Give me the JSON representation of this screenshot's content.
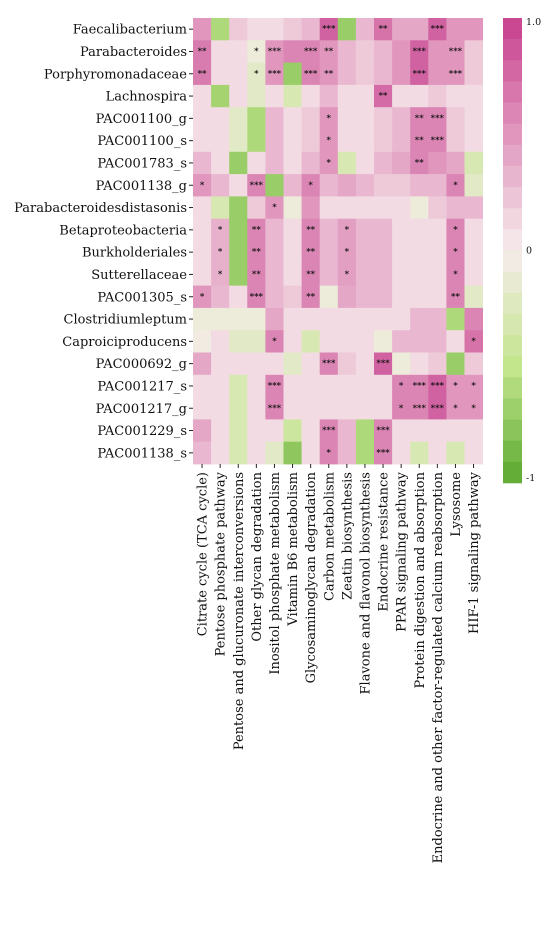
{
  "chart_data": {
    "type": "heatmap",
    "title": "",
    "xlabel": "",
    "ylabel": "",
    "rows": [
      "Faecalibacterium",
      "Parabacteroides",
      "Porphyromonadaceae",
      "Lachnospira",
      "PAC001100_g",
      "PAC001100_s",
      "PAC001783_s",
      "PAC001138_g",
      "Parabacteroidesdistasonis",
      "Betaproteobacteria",
      "Burkholderiales",
      "Sutterellaceae",
      "PAC001305_s",
      "Clostridiumleptum",
      "Caproiciproducens",
      "PAC000692_g",
      "PAC001217_s",
      "PAC001217_g",
      "PAC001229_s",
      "PAC001138_s"
    ],
    "columns": [
      "Citrate cycle (TCA cycle)",
      "Pentose phosphate pathway",
      "Pentose and glucuronate interconversions",
      "Other glycan degradation",
      "Inositol phosphate metabolism",
      "Vitamin B6 metabolism",
      "Glycosaminoglycan degradation",
      "Carbon metabolism",
      "Zeatin biosynthesis",
      "Flavone and flavonol biosynthesis",
      "Endocrine resistance",
      "PPAR signaling pathway",
      "Protein digestion and absorption",
      "Endocrine and other factor-regulated calcium reabsorption",
      "Lysosome",
      "HIF-1 signaling pathway"
    ],
    "values": [
      [
        0.5,
        -0.6,
        0.2,
        0.1,
        0.1,
        0.2,
        0.3,
        0.8,
        -0.7,
        0.3,
        0.7,
        0.4,
        0.4,
        0.8,
        0.5,
        0.5
      ],
      [
        0.65,
        0.1,
        0.1,
        -0.1,
        0.5,
        0.6,
        0.6,
        0.5,
        0.3,
        0.2,
        0.3,
        0.5,
        0.8,
        0.5,
        0.5,
        0.2
      ],
      [
        0.65,
        0.1,
        0.1,
        -0.2,
        0.5,
        -0.7,
        0.6,
        0.5,
        0.3,
        0.2,
        0.3,
        0.5,
        0.8,
        0.5,
        0.5,
        0.2
      ],
      [
        0.1,
        -0.65,
        0.1,
        -0.2,
        0.1,
        -0.3,
        0.1,
        0.3,
        0.1,
        0.1,
        0.75,
        0.1,
        0.1,
        0.2,
        0.1,
        0.1
      ],
      [
        0.1,
        0.1,
        -0.2,
        -0.6,
        0.3,
        0.1,
        0.2,
        0.5,
        0.1,
        0.1,
        0.2,
        0.3,
        0.6,
        0.6,
        0.2,
        0.1
      ],
      [
        0.1,
        0.1,
        -0.2,
        -0.6,
        0.3,
        0.1,
        0.2,
        0.5,
        0.1,
        0.1,
        0.2,
        0.3,
        0.6,
        0.6,
        0.2,
        0.1
      ],
      [
        0.3,
        0.1,
        -0.7,
        0.1,
        0.3,
        0.1,
        0.3,
        0.5,
        -0.3,
        0.1,
        0.3,
        0.4,
        0.6,
        0.5,
        0.4,
        -0.3
      ],
      [
        0.5,
        0.3,
        0.1,
        0.6,
        -0.7,
        0.3,
        0.6,
        0.3,
        0.4,
        0.3,
        0.2,
        0.2,
        0.3,
        0.3,
        0.6,
        -0.2
      ],
      [
        0.1,
        -0.3,
        -0.7,
        0.2,
        0.5,
        -0.1,
        0.5,
        0.1,
        0.1,
        0.1,
        0.1,
        0.1,
        -0.1,
        0.2,
        0.3,
        0.3
      ],
      [
        0.1,
        0.35,
        -0.7,
        0.6,
        0.3,
        0.1,
        0.6,
        0.3,
        0.45,
        0.3,
        0.3,
        0.1,
        0.1,
        0.1,
        0.6,
        0.1
      ],
      [
        0.1,
        0.35,
        -0.7,
        0.6,
        0.3,
        0.1,
        0.6,
        0.3,
        0.45,
        0.3,
        0.3,
        0.1,
        0.1,
        0.1,
        0.6,
        0.1
      ],
      [
        0.1,
        0.35,
        -0.7,
        0.6,
        0.3,
        0.1,
        0.6,
        0.3,
        0.45,
        0.3,
        0.3,
        0.1,
        0.1,
        0.1,
        0.6,
        0.1
      ],
      [
        0.5,
        0.3,
        0.1,
        0.6,
        0.3,
        0.2,
        0.6,
        -0.1,
        0.4,
        0.3,
        0.3,
        0.1,
        0.1,
        0.1,
        0.6,
        -0.2
      ],
      [
        -0.1,
        -0.1,
        -0.1,
        -0.1,
        0.4,
        0.1,
        0.1,
        0.1,
        0.1,
        0.1,
        0.1,
        0.1,
        0.3,
        0.3,
        -0.6,
        0.6
      ],
      [
        -0.05,
        0.1,
        -0.2,
        -0.2,
        0.6,
        0.1,
        -0.3,
        0.1,
        0.1,
        0.1,
        -0.1,
        0.3,
        0.3,
        0.3,
        0.1,
        0.7
      ],
      [
        0.4,
        0.1,
        0.1,
        0.1,
        0.1,
        -0.2,
        0.1,
        0.6,
        0.2,
        0.1,
        0.8,
        -0.1,
        0.1,
        0.2,
        -0.7,
        0.2
      ],
      [
        0.1,
        0.1,
        -0.3,
        0.1,
        0.6,
        0.1,
        0.1,
        0.1,
        0.1,
        0.1,
        0.1,
        0.6,
        0.6,
        0.8,
        0.5,
        0.5
      ],
      [
        0.1,
        0.1,
        -0.3,
        0.1,
        0.6,
        0.1,
        0.1,
        0.1,
        0.1,
        0.1,
        0.1,
        0.6,
        0.6,
        0.8,
        0.5,
        0.5
      ],
      [
        0.4,
        0.1,
        -0.3,
        0.1,
        0.1,
        -0.4,
        0.1,
        0.6,
        0.3,
        -0.6,
        0.6,
        0.1,
        0.1,
        0.1,
        0.1,
        0.1
      ],
      [
        0.3,
        0.1,
        -0.3,
        0.1,
        -0.2,
        -0.75,
        0.1,
        0.6,
        0.3,
        -0.6,
        0.6,
        0.1,
        -0.3,
        0.1,
        -0.3,
        0.1
      ]
    ],
    "stars": [
      [
        "",
        "",
        "",
        "",
        "",
        "",
        "",
        "***",
        "",
        "",
        "**",
        "",
        "",
        "***",
        "",
        ""
      ],
      [
        "**",
        "",
        "",
        "*",
        "***",
        "",
        "***",
        "**",
        "",
        "",
        "",
        "",
        "***",
        "",
        "***",
        ""
      ],
      [
        "**",
        "",
        "",
        "*",
        "***",
        "",
        "***",
        "**",
        "",
        "",
        "",
        "",
        "***",
        "",
        "***",
        ""
      ],
      [
        "",
        "",
        "",
        "",
        "",
        "",
        "",
        "",
        "",
        "",
        "**",
        "",
        "",
        "",
        "",
        ""
      ],
      [
        "",
        "",
        "",
        "",
        "",
        "",
        "",
        "*",
        "",
        "",
        "",
        "",
        "**",
        "***",
        "",
        ""
      ],
      [
        "",
        "",
        "",
        "",
        "",
        "",
        "",
        "*",
        "",
        "",
        "",
        "",
        "**",
        "***",
        "",
        ""
      ],
      [
        "",
        "",
        "",
        "",
        "",
        "",
        "",
        "*",
        "",
        "",
        "",
        "",
        "**",
        "",
        "",
        ""
      ],
      [
        "*",
        "",
        "",
        "***",
        "",
        "",
        "*",
        "",
        "",
        "",
        "",
        "",
        "",
        "",
        "*",
        ""
      ],
      [
        "",
        "",
        "",
        "",
        "*",
        "",
        "",
        "",
        "",
        "",
        "",
        "",
        "",
        "",
        "",
        ""
      ],
      [
        "",
        "*",
        "",
        "**",
        "",
        "",
        "**",
        "",
        "*",
        "",
        "",
        "",
        "",
        "",
        "*",
        ""
      ],
      [
        "",
        "*",
        "",
        "**",
        "",
        "",
        "**",
        "",
        "*",
        "",
        "",
        "",
        "",
        "",
        "*",
        ""
      ],
      [
        "",
        "*",
        "",
        "**",
        "",
        "",
        "**",
        "",
        "*",
        "",
        "",
        "",
        "",
        "",
        "*",
        ""
      ],
      [
        "*",
        "",
        "",
        "***",
        "",
        "",
        "**",
        "",
        "",
        "",
        "",
        "",
        "",
        "",
        "**",
        ""
      ],
      [
        "",
        "",
        "",
        "",
        "",
        "",
        "",
        "",
        "",
        "",
        "",
        "",
        "",
        "",
        "",
        ""
      ],
      [
        "",
        "",
        "",
        "",
        "*",
        "",
        "",
        "",
        "",
        "",
        "",
        "",
        "",
        "",
        "",
        "*"
      ],
      [
        "",
        "",
        "",
        "",
        "",
        "",
        "",
        "***",
        "",
        "",
        "***",
        "",
        "",
        "",
        "",
        ""
      ],
      [
        "",
        "",
        "",
        "",
        "***",
        "",
        "",
        "",
        "",
        "",
        "",
        "*",
        "***",
        "***",
        "*",
        "*"
      ],
      [
        "",
        "",
        "",
        "",
        "***",
        "",
        "",
        "",
        "",
        "",
        "",
        "*",
        "***",
        "***",
        "*",
        "*"
      ],
      [
        "",
        "",
        "",
        "",
        "",
        "",
        "",
        "***",
        "",
        "",
        "***",
        "",
        "",
        "",
        "",
        ""
      ],
      [
        "",
        "",
        "",
        "",
        "",
        "",
        "",
        "*",
        "",
        "",
        "***",
        "",
        "",
        "",
        "",
        ""
      ]
    ],
    "zlim": [
      -1,
      1
    ],
    "colorbar_ticks": [
      "1.0",
      "0",
      "-1"
    ],
    "colors": {
      "high": "#c8408e",
      "mid": "#f7ecec",
      "low_mid": "#c3e58c",
      "low": "#5aa830"
    },
    "grid": false,
    "legend": "right"
  }
}
